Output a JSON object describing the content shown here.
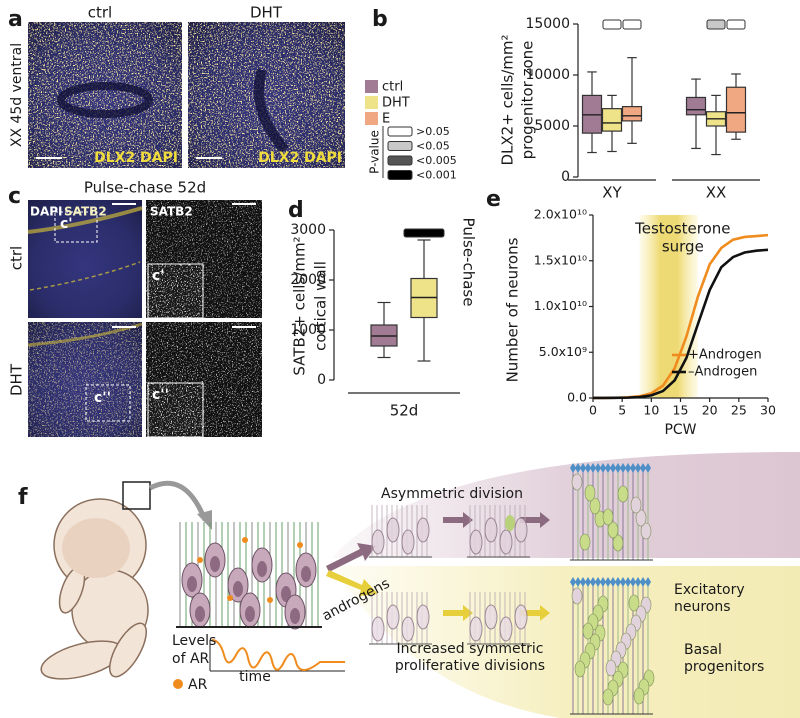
{
  "panel_labels": [
    "a",
    "b",
    "c",
    "d",
    "e",
    "f"
  ],
  "panel_a": {
    "conditions": [
      "ctrl",
      "DHT"
    ],
    "side_label": "XX 45d ventral",
    "stains": [
      "DLX2 DAPI",
      "DLX2 DAPI"
    ]
  },
  "panel_c": {
    "title": "Pulse-chase 52d",
    "merge_stains": [
      "DAPI",
      "SATB2"
    ],
    "single_stain": "SATB2",
    "conditions": [
      "ctrl",
      "DHT"
    ],
    "insets": [
      [
        "c'",
        "c'"
      ],
      [
        "c''",
        "c''"
      ]
    ]
  },
  "panel_f": {
    "asymmetric": "Asymmetric division",
    "androgens": "androgens",
    "ar_levels": [
      "Levels",
      "of AR"
    ],
    "time": "time",
    "ar": "AR",
    "symmetric": [
      "Increased symmetric",
      "proliferative divisions"
    ],
    "excitatory": [
      "Excitatory",
      "neurons"
    ],
    "basal": [
      "Basal",
      "progenitors"
    ]
  },
  "chart_data": [
    {
      "type": "box",
      "ylabel": [
        "DLX2+ cells/mm²",
        "progenitor zone"
      ],
      "categories": [
        "XY",
        "XX"
      ],
      "series": [
        {
          "name": "ctrl",
          "color": "#a07b93",
          "values": [
            {
              "low": 2400,
              "q1": 4300,
              "median": 6100,
              "q3": 8000,
              "high": 10300
            },
            {
              "low": 2800,
              "q1": 6100,
              "median": 6600,
              "q3": 7800,
              "high": 9600
            }
          ]
        },
        {
          "name": "DHT",
          "color": "#efe38a",
          "values": [
            {
              "low": 2500,
              "q1": 4500,
              "median": 5300,
              "q3": 6700,
              "high": 8000
            },
            {
              "low": 2200,
              "q1": 5000,
              "median": 5700,
              "q3": 6400,
              "high": 8000
            }
          ]
        },
        {
          "name": "E",
          "color": "#f0a882",
          "values": [
            {
              "low": 3300,
              "q1": 5500,
              "median": 6000,
              "q3": 6900,
              "high": 11700
            },
            {
              "low": 3700,
              "q1": 4400,
              "median": 6300,
              "q3": 8800,
              "high": 10100
            }
          ]
        }
      ],
      "ylim": [
        0,
        15000
      ],
      "yticks": [
        0,
        5000,
        10000,
        15000
      ],
      "pvalue_legend": {
        "title": "P-value",
        "levels": [
          {
            "label": ">0.05",
            "color": "#ffffff"
          },
          {
            "label": "<0.05",
            "color": "#c8c8c8"
          },
          {
            "label": "<0.005",
            "color": "#555555"
          },
          {
            "label": "<0.001",
            "color": "#000000"
          }
        ]
      },
      "significance": [
        [
          ">0.05",
          ">0.05"
        ],
        [
          "<0.05",
          ">0.05"
        ]
      ]
    },
    {
      "type": "box",
      "ylabel": [
        "SATB2+ cells/mm²",
        "cortical wall"
      ],
      "categories": [
        "52d"
      ],
      "series": [
        {
          "color": "#a07b93",
          "values": [
            {
              "low": 450,
              "q1": 680,
              "median": 880,
              "q3": 1100,
              "high": 1550
            }
          ]
        },
        {
          "color": "#efe38a",
          "values": [
            {
              "low": 380,
              "q1": 1250,
              "median": 1650,
              "q3": 2030,
              "high": 2800
            }
          ]
        }
      ],
      "ylim": [
        0,
        3000
      ],
      "yticks": [
        0,
        1000,
        2000,
        3000
      ],
      "significance": [
        [
          "<0.001"
        ]
      ],
      "side_label": "Pulse-chase"
    },
    {
      "type": "line",
      "ylabel": "Number of neurons",
      "xlabel": "PCW",
      "x": [
        0,
        2,
        4,
        6,
        8,
        10,
        12,
        14,
        16,
        18,
        20,
        22,
        24,
        26,
        28,
        30
      ],
      "series": [
        {
          "name": "+Androgen",
          "color": "#f08c1e",
          "values": [
            3600000,
            10000000,
            27000000,
            72000000,
            195000000,
            520000000,
            1350000000,
            3250000000,
            6700000000,
            11100000000,
            14600000000,
            16400000000,
            17300000000,
            17600000000,
            17700000000,
            17800000000
          ]
        },
        {
          "name": "–Androgen",
          "color": "#111111",
          "values": [
            2000000,
            5400000,
            15000000,
            40000000,
            109000000,
            290000000,
            760000000,
            1930000000,
            4360000000,
            8100000000,
            11800000000,
            14300000000,
            15400000000,
            15900000000,
            16100000000,
            16200000000
          ]
        }
      ],
      "xlim": [
        0,
        30
      ],
      "xticks": [
        0,
        5,
        10,
        15,
        20,
        25,
        30
      ],
      "ylim": [
        0,
        20000000000
      ],
      "yticks": [
        {
          "value": 0,
          "label": "0.0"
        },
        {
          "value": 5000000000,
          "label": "5.0x10⁹"
        },
        {
          "value": 10000000000,
          "label": "1.0x10¹⁰"
        },
        {
          "value": 15000000000,
          "label": "1.5x10¹⁰"
        },
        {
          "value": 20000000000,
          "label": "2.0x10¹⁰"
        }
      ],
      "annotation": {
        "text": [
          "Testosterone",
          "surge"
        ],
        "span": [
          8,
          18
        ],
        "color": "#e8c93a"
      },
      "legend": "lower right"
    }
  ]
}
